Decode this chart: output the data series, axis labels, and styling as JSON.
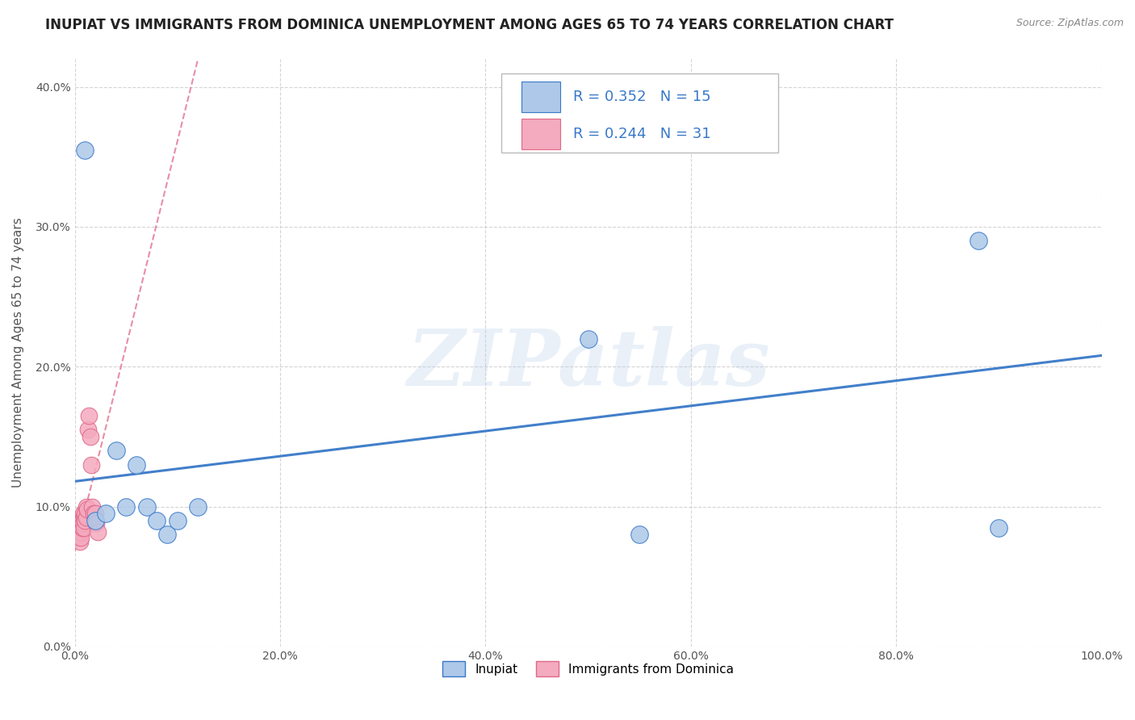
{
  "title": "INUPIAT VS IMMIGRANTS FROM DOMINICA UNEMPLOYMENT AMONG AGES 65 TO 74 YEARS CORRELATION CHART",
  "source": "Source: ZipAtlas.com",
  "ylabel": "Unemployment Among Ages 65 to 74 years",
  "xlim": [
    0.0,
    1.0
  ],
  "ylim": [
    0.0,
    0.42
  ],
  "xticks": [
    0.0,
    0.2,
    0.4,
    0.6,
    0.8,
    1.0
  ],
  "xticklabels": [
    "0.0%",
    "20.0%",
    "40.0%",
    "60.0%",
    "80.0%",
    "100.0%"
  ],
  "yticks": [
    0.0,
    0.1,
    0.2,
    0.3,
    0.4
  ],
  "yticklabels": [
    "0.0%",
    "10.0%",
    "20.0%",
    "30.0%",
    "40.0%"
  ],
  "inupiat_x": [
    0.01,
    0.02,
    0.03,
    0.04,
    0.05,
    0.06,
    0.07,
    0.08,
    0.09,
    0.1,
    0.12,
    0.5,
    0.55,
    0.88,
    0.9
  ],
  "inupiat_y": [
    0.355,
    0.09,
    0.095,
    0.14,
    0.1,
    0.13,
    0.1,
    0.09,
    0.08,
    0.09,
    0.1,
    0.22,
    0.08,
    0.29,
    0.085
  ],
  "dominica_x": [
    0.001,
    0.002,
    0.003,
    0.003,
    0.004,
    0.004,
    0.005,
    0.005,
    0.005,
    0.006,
    0.006,
    0.007,
    0.007,
    0.008,
    0.008,
    0.009,
    0.009,
    0.01,
    0.01,
    0.011,
    0.011,
    0.012,
    0.013,
    0.014,
    0.015,
    0.016,
    0.017,
    0.018,
    0.02,
    0.021,
    0.022
  ],
  "dominica_y": [
    0.085,
    0.085,
    0.09,
    0.082,
    0.088,
    0.078,
    0.085,
    0.08,
    0.075,
    0.082,
    0.078,
    0.09,
    0.085,
    0.095,
    0.088,
    0.092,
    0.085,
    0.095,
    0.09,
    0.1,
    0.092,
    0.098,
    0.155,
    0.165,
    0.15,
    0.13,
    0.1,
    0.095,
    0.095,
    0.088,
    0.082
  ],
  "inupiat_color": "#adc8e8",
  "inupiat_line_color": "#3878c8",
  "dominica_color": "#f4aabf",
  "dominica_line_color": "#e06888",
  "R_inupiat": 0.352,
  "N_inupiat": 15,
  "R_dominica": 0.244,
  "N_dominica": 31,
  "inupiat_line_x0": 0.0,
  "inupiat_line_y0": 0.118,
  "inupiat_line_x1": 1.0,
  "inupiat_line_y1": 0.208,
  "dominica_line_x0": 0.0,
  "dominica_line_y0": 0.068,
  "dominica_line_x1": 0.12,
  "dominica_line_y1": 0.42,
  "watermark": "ZIPatlas",
  "background_color": "#ffffff",
  "grid_color": "#d0d0d0",
  "title_fontsize": 12,
  "axis_fontsize": 11,
  "tick_fontsize": 10,
  "legend_fontsize": 13
}
